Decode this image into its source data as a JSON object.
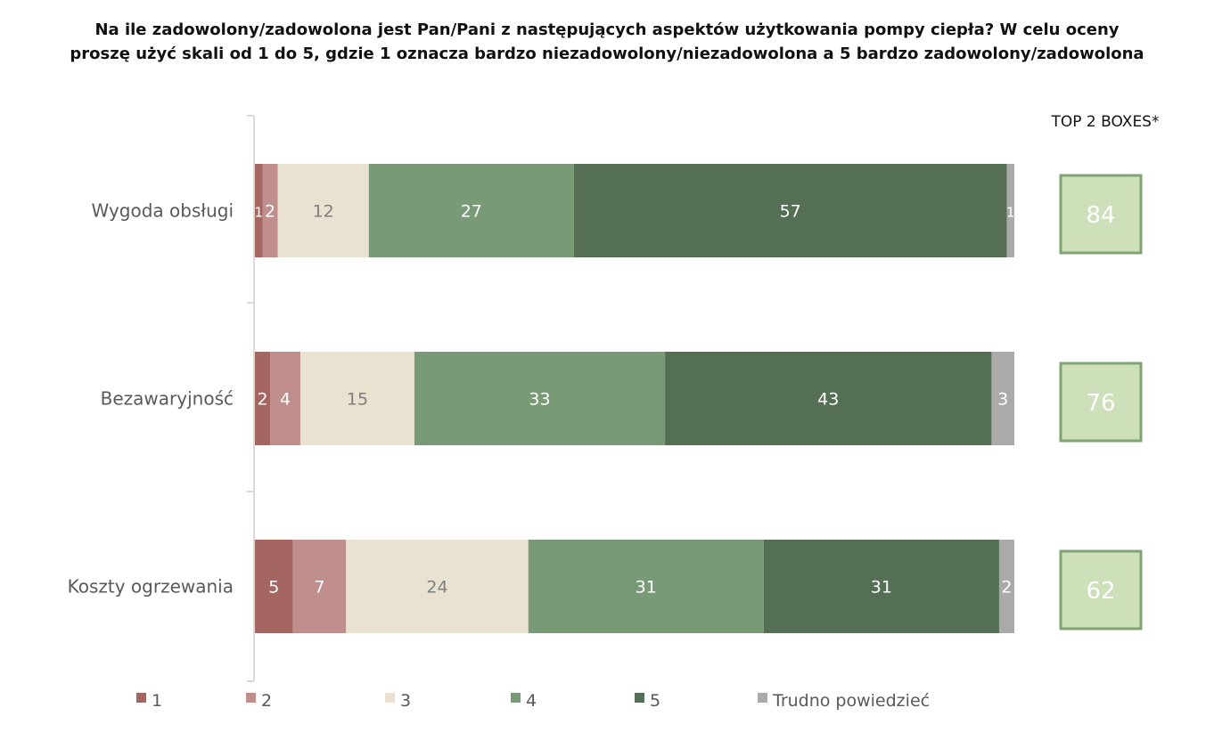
{
  "title_line1": "Na ile zadowolony/zadowolona jest Pan/Pani z następujących aspektów użytkowania pompy ciepła? W celu oceny",
  "title_line2": "proszę użyć skali od 1 do 5, gdzie 1 oznacza bardzo niezadowolony/niezadowolona a 5 bardzo zadowolony/zadowolona",
  "top2_header": "TOP 2 BOXES*",
  "chart_data": {
    "type": "bar",
    "orientation": "horizontal",
    "stacked": true,
    "xlim": [
      0,
      100
    ],
    "categories": [
      "Wygoda obsługi",
      "Bezawaryjność",
      "Koszty ogrzewania"
    ],
    "series": [
      {
        "name": "1",
        "color": "#a56662",
        "label_color": "#ffffff",
        "values": [
          1,
          2,
          5
        ]
      },
      {
        "name": "2",
        "color": "#c08e8d",
        "label_color": "#ffffff",
        "values": [
          2,
          4,
          7
        ]
      },
      {
        "name": "3",
        "color": "#e9e2d0",
        "label_color": "#7f7f7f",
        "values": [
          12,
          15,
          24
        ]
      },
      {
        "name": "4",
        "color": "#789a76",
        "label_color": "#ffffff",
        "values": [
          27,
          33,
          31
        ]
      },
      {
        "name": "5",
        "color": "#556f55",
        "label_color": "#ffffff",
        "values": [
          57,
          43,
          31
        ]
      },
      {
        "name": "Trudno powiedzieć",
        "color": "#aaaaaa",
        "label_color": "#ffffff",
        "values": [
          1,
          3,
          2
        ]
      }
    ],
    "top2_boxes": [
      84,
      76,
      62
    ],
    "top2_box_fill": "#cde0b9",
    "top2_box_border": "#7fa472",
    "legend_position": "bottom",
    "grid": false
  }
}
